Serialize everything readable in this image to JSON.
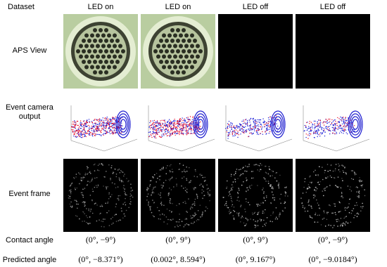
{
  "header": {
    "label": "Dataset",
    "columns": [
      "LED on",
      "LED on",
      "LED off",
      "LED off"
    ]
  },
  "rows": [
    {
      "label": "APS View"
    },
    {
      "label": "Event camera output"
    },
    {
      "label": "Event frame"
    },
    {
      "label": "Contact angle",
      "values": [
        "(0°, −9°)",
        "(0°, 9°)",
        "(0°, 9°)",
        "(0°, −9°)"
      ]
    },
    {
      "label": "Predicted angle",
      "values": [
        "(0°, −8.371°)",
        "(0.002°, 8.594°)",
        "(0°, 9.167°)",
        "(0°, −9.0184°)"
      ]
    }
  ]
}
